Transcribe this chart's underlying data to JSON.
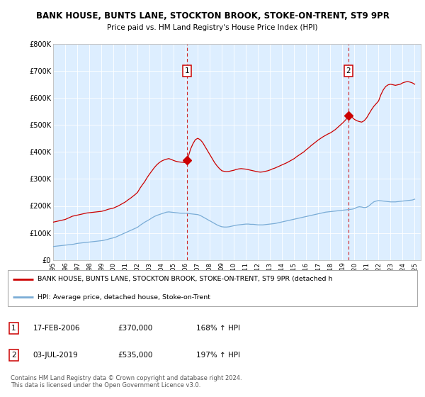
{
  "title1": "BANK HOUSE, BUNTS LANE, STOCKTON BROOK, STOKE-ON-TRENT, ST9 9PR",
  "title2": "Price paid vs. HM Land Registry's House Price Index (HPI)",
  "plot_bg_color": "#ddeeff",
  "red_line_color": "#cc0000",
  "blue_line_color": "#7aacd6",
  "ylim": [
    0,
    800000
  ],
  "yticks": [
    0,
    100000,
    200000,
    300000,
    400000,
    500000,
    600000,
    700000,
    800000
  ],
  "ytick_labels": [
    "£0",
    "£100K",
    "£200K",
    "£300K",
    "£400K",
    "£500K",
    "£600K",
    "£700K",
    "£800K"
  ],
  "xlim_start": 1995.0,
  "xlim_end": 2025.5,
  "ann1_x": 2006.1,
  "ann1_y": 370000,
  "ann1_label": "1",
  "ann1_date": "17-FEB-2006",
  "ann1_price": "£370,000",
  "ann1_hpi": "168% ↑ HPI",
  "ann2_x": 2019.5,
  "ann2_y": 535000,
  "ann2_label": "2",
  "ann2_date": "03-JUL-2019",
  "ann2_price": "£535,000",
  "ann2_hpi": "197% ↑ HPI",
  "legend_red": "BANK HOUSE, BUNTS LANE, STOCKTON BROOK, STOKE-ON-TRENT, ST9 9PR (detached h",
  "legend_blue": "HPI: Average price, detached house, Stoke-on-Trent",
  "footer": "Contains HM Land Registry data © Crown copyright and database right 2024.\nThis data is licensed under the Open Government Licence v3.0.",
  "xtick_years": [
    1995,
    1996,
    1997,
    1998,
    1999,
    2000,
    2001,
    2002,
    2003,
    2004,
    2005,
    2006,
    2007,
    2008,
    2009,
    2010,
    2011,
    2012,
    2013,
    2014,
    2015,
    2016,
    2017,
    2018,
    2019,
    2020,
    2021,
    2022,
    2023,
    2024,
    2025
  ],
  "hpi_x": [
    1995.0,
    1995.1,
    1995.2,
    1995.3,
    1995.4,
    1995.5,
    1995.6,
    1995.7,
    1995.8,
    1995.9,
    1996.0,
    1996.1,
    1996.2,
    1996.3,
    1996.4,
    1996.5,
    1996.6,
    1996.7,
    1996.8,
    1996.9,
    1997.0,
    1997.1,
    1997.2,
    1997.3,
    1997.4,
    1997.5,
    1997.6,
    1997.7,
    1997.8,
    1997.9,
    1998.0,
    1998.1,
    1998.2,
    1998.3,
    1998.4,
    1998.5,
    1998.6,
    1998.7,
    1998.8,
    1998.9,
    1999.0,
    1999.1,
    1999.2,
    1999.3,
    1999.4,
    1999.5,
    1999.6,
    1999.7,
    1999.8,
    1999.9,
    2000.0,
    2000.1,
    2000.2,
    2000.3,
    2000.4,
    2000.5,
    2000.6,
    2000.7,
    2000.8,
    2000.9,
    2001.0,
    2001.1,
    2001.2,
    2001.3,
    2001.4,
    2001.5,
    2001.6,
    2001.7,
    2001.8,
    2001.9,
    2002.0,
    2002.2,
    2002.4,
    2002.6,
    2002.8,
    2003.0,
    2003.2,
    2003.4,
    2003.6,
    2003.8,
    2004.0,
    2004.2,
    2004.4,
    2004.6,
    2004.8,
    2005.0,
    2005.2,
    2005.4,
    2005.6,
    2005.8,
    2006.0,
    2006.2,
    2006.4,
    2006.6,
    2006.8,
    2007.0,
    2007.2,
    2007.4,
    2007.6,
    2007.8,
    2008.0,
    2008.2,
    2008.4,
    2008.6,
    2008.8,
    2009.0,
    2009.2,
    2009.4,
    2009.6,
    2009.8,
    2010.0,
    2010.2,
    2010.4,
    2010.6,
    2010.8,
    2011.0,
    2011.2,
    2011.4,
    2011.6,
    2011.8,
    2012.0,
    2012.2,
    2012.4,
    2012.6,
    2012.8,
    2013.0,
    2013.2,
    2013.4,
    2013.6,
    2013.8,
    2014.0,
    2014.2,
    2014.4,
    2014.6,
    2014.8,
    2015.0,
    2015.2,
    2015.4,
    2015.6,
    2015.8,
    2016.0,
    2016.2,
    2016.4,
    2016.6,
    2016.8,
    2017.0,
    2017.2,
    2017.4,
    2017.6,
    2017.8,
    2018.0,
    2018.2,
    2018.4,
    2018.6,
    2018.8,
    2019.0,
    2019.2,
    2019.4,
    2019.6,
    2019.8,
    2020.0,
    2020.2,
    2020.4,
    2020.6,
    2020.8,
    2021.0,
    2021.2,
    2021.4,
    2021.6,
    2021.8,
    2022.0,
    2022.2,
    2022.4,
    2022.6,
    2022.8,
    2023.0,
    2023.2,
    2023.4,
    2023.6,
    2023.8,
    2024.0,
    2024.2,
    2024.4,
    2024.6,
    2024.8,
    2025.0
  ],
  "hpi_y": [
    50000,
    50500,
    51000,
    51500,
    52000,
    52500,
    53000,
    53500,
    54000,
    54500,
    55000,
    55500,
    56000,
    56500,
    57000,
    57500,
    58000,
    58500,
    59500,
    60500,
    61500,
    62000,
    62500,
    63000,
    63500,
    64000,
    64500,
    65000,
    65500,
    66000,
    66500,
    67000,
    67500,
    68000,
    68500,
    69000,
    69500,
    70000,
    70500,
    71000,
    71500,
    72000,
    73000,
    74000,
    75000,
    76000,
    77500,
    79000,
    80000,
    81000,
    82000,
    83500,
    85000,
    87000,
    89000,
    91000,
    93000,
    95000,
    97000,
    99000,
    101000,
    103000,
    105000,
    107000,
    109000,
    111000,
    113000,
    115000,
    117000,
    119000,
    121000,
    128000,
    134000,
    140000,
    145000,
    150000,
    156000,
    161000,
    165000,
    168000,
    171000,
    174000,
    177000,
    178000,
    177000,
    176000,
    175000,
    174000,
    173000,
    173000,
    173000,
    172000,
    171000,
    170000,
    169000,
    168000,
    165000,
    160000,
    155000,
    150000,
    145000,
    140000,
    135000,
    130000,
    126000,
    123000,
    122000,
    122000,
    123000,
    125000,
    127000,
    129000,
    130000,
    131000,
    132000,
    133000,
    133000,
    132000,
    132000,
    131000,
    130000,
    130000,
    130000,
    131000,
    132000,
    133000,
    134000,
    135000,
    137000,
    139000,
    141000,
    143000,
    145000,
    147000,
    149000,
    151000,
    153000,
    155000,
    157000,
    159000,
    161000,
    163000,
    165000,
    167000,
    169000,
    171000,
    173000,
    175000,
    177000,
    178000,
    179000,
    180000,
    181000,
    182000,
    183000,
    184000,
    185000,
    186000,
    187000,
    188000,
    190000,
    195000,
    197000,
    196000,
    194000,
    195000,
    200000,
    208000,
    215000,
    218000,
    220000,
    219000,
    218000,
    217000,
    216000,
    215000,
    215000,
    215000,
    216000,
    217000,
    218000,
    219000,
    220000,
    221000,
    222000,
    225000
  ],
  "red_x": [
    1995.0,
    1995.1,
    1995.2,
    1995.3,
    1995.4,
    1995.5,
    1995.6,
    1995.7,
    1995.8,
    1995.9,
    1996.0,
    1996.1,
    1996.2,
    1996.3,
    1996.4,
    1996.5,
    1996.6,
    1996.7,
    1996.8,
    1996.9,
    1997.0,
    1997.2,
    1997.4,
    1997.6,
    1997.8,
    1998.0,
    1998.2,
    1998.4,
    1998.6,
    1998.8,
    1999.0,
    1999.2,
    1999.4,
    1999.6,
    1999.8,
    2000.0,
    2000.2,
    2000.4,
    2000.6,
    2000.8,
    2001.0,
    2001.2,
    2001.4,
    2001.6,
    2001.8,
    2002.0,
    2002.2,
    2002.4,
    2002.6,
    2002.8,
    2003.0,
    2003.2,
    2003.4,
    2003.6,
    2003.8,
    2004.0,
    2004.2,
    2004.4,
    2004.6,
    2004.8,
    2005.0,
    2005.2,
    2005.4,
    2005.6,
    2005.8,
    2006.0,
    2006.2,
    2006.4,
    2006.6,
    2006.8,
    2007.0,
    2007.2,
    2007.4,
    2007.6,
    2007.8,
    2008.0,
    2008.2,
    2008.4,
    2008.6,
    2008.8,
    2009.0,
    2009.2,
    2009.4,
    2009.6,
    2009.8,
    2010.0,
    2010.2,
    2010.4,
    2010.6,
    2010.8,
    2011.0,
    2011.2,
    2011.4,
    2011.6,
    2011.8,
    2012.0,
    2012.2,
    2012.4,
    2012.6,
    2012.8,
    2013.0,
    2013.2,
    2013.4,
    2013.6,
    2013.8,
    2014.0,
    2014.2,
    2014.4,
    2014.6,
    2014.8,
    2015.0,
    2015.2,
    2015.4,
    2015.6,
    2015.8,
    2016.0,
    2016.2,
    2016.4,
    2016.6,
    2016.8,
    2017.0,
    2017.2,
    2017.4,
    2017.6,
    2017.8,
    2018.0,
    2018.2,
    2018.4,
    2018.6,
    2018.8,
    2019.0,
    2019.2,
    2019.4,
    2019.6,
    2019.8,
    2020.0,
    2020.2,
    2020.4,
    2020.6,
    2020.8,
    2021.0,
    2021.2,
    2021.4,
    2021.6,
    2021.8,
    2022.0,
    2022.2,
    2022.4,
    2022.6,
    2022.8,
    2023.0,
    2023.2,
    2023.4,
    2023.6,
    2023.8,
    2024.0,
    2024.2,
    2024.4,
    2024.6,
    2024.8,
    2025.0
  ],
  "red_y": [
    140000,
    141000,
    142000,
    143000,
    144000,
    145000,
    146000,
    147000,
    148000,
    149000,
    150000,
    152000,
    154000,
    156000,
    158000,
    160000,
    162000,
    163000,
    164000,
    165000,
    166000,
    168000,
    170000,
    172000,
    174000,
    175000,
    176000,
    177000,
    178000,
    179000,
    180000,
    182000,
    185000,
    188000,
    190000,
    192000,
    196000,
    200000,
    205000,
    210000,
    215000,
    222000,
    228000,
    235000,
    242000,
    250000,
    265000,
    278000,
    290000,
    305000,
    318000,
    330000,
    342000,
    352000,
    360000,
    366000,
    370000,
    373000,
    375000,
    372000,
    368000,
    365000,
    363000,
    362000,
    361000,
    360000,
    380000,
    410000,
    430000,
    445000,
    450000,
    445000,
    435000,
    420000,
    405000,
    390000,
    375000,
    360000,
    348000,
    338000,
    330000,
    328000,
    327000,
    328000,
    330000,
    332000,
    335000,
    337000,
    338000,
    337000,
    336000,
    334000,
    332000,
    330000,
    328000,
    326000,
    325000,
    326000,
    328000,
    330000,
    333000,
    337000,
    340000,
    344000,
    348000,
    352000,
    356000,
    360000,
    365000,
    370000,
    375000,
    382000,
    388000,
    394000,
    400000,
    408000,
    415000,
    423000,
    430000,
    437000,
    444000,
    450000,
    456000,
    461000,
    466000,
    470000,
    476000,
    482000,
    490000,
    498000,
    506000,
    515000,
    525000,
    535000,
    528000,
    520000,
    515000,
    512000,
    510000,
    515000,
    525000,
    540000,
    555000,
    568000,
    578000,
    588000,
    612000,
    630000,
    642000,
    648000,
    650000,
    648000,
    646000,
    648000,
    650000,
    655000,
    658000,
    660000,
    658000,
    655000,
    650000
  ]
}
